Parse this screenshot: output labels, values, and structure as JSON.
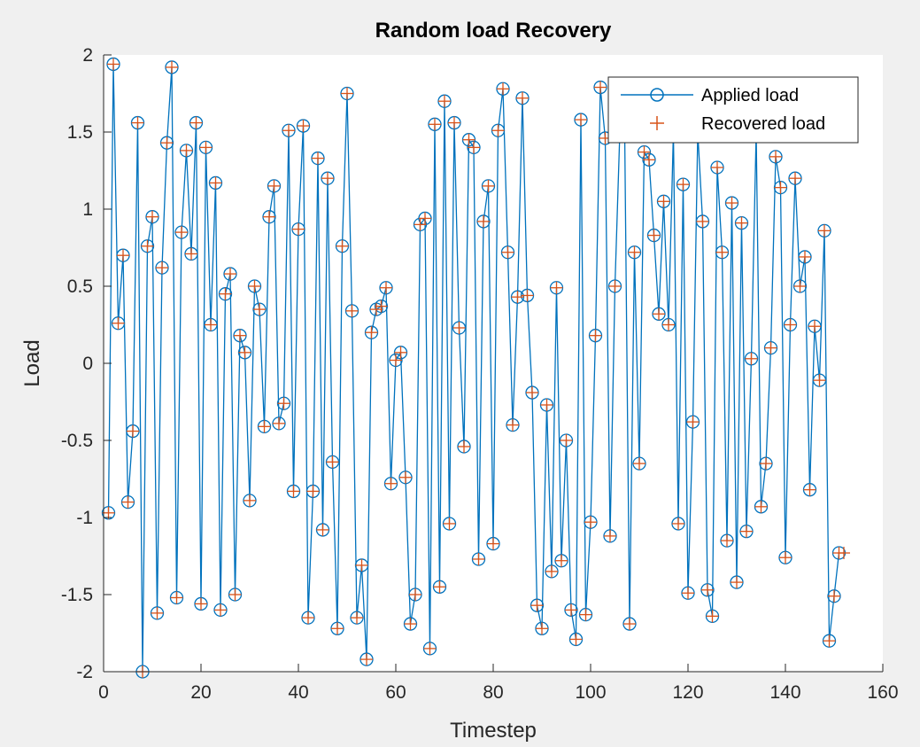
{
  "chart_data": {
    "type": "line",
    "title": "Random load Recovery",
    "xlabel": "Timestep",
    "ylabel": "Load",
    "xlim": [
      0,
      160
    ],
    "ylim": [
      -2,
      2
    ],
    "xticks": [
      "0",
      "20",
      "40",
      "60",
      "80",
      "100",
      "120",
      "140",
      "160"
    ],
    "yticks": [
      "2",
      "1.5",
      "1",
      "0.5",
      "0",
      "-0.5",
      "-1",
      "-1.5",
      "-2"
    ],
    "xtick_values": [
      0,
      20,
      40,
      60,
      80,
      100,
      120,
      140,
      160
    ],
    "ytick_values": [
      2,
      1.5,
      1,
      0.5,
      0,
      -0.5,
      -1,
      -1.5,
      -2
    ],
    "legend_position": "top-right",
    "grid": false,
    "series": [
      {
        "name": "Applied load",
        "style": "line-circle",
        "color": "#0072bd",
        "x": [
          1,
          2,
          3,
          4,
          5,
          6,
          7,
          8,
          9,
          10,
          11,
          12,
          13,
          14,
          15,
          16,
          17,
          18,
          19,
          20,
          21,
          22,
          23,
          24,
          25,
          26,
          27,
          28,
          29,
          30,
          31,
          32,
          33,
          34,
          35,
          36,
          37,
          38,
          39,
          40,
          41,
          42,
          43,
          44,
          45,
          46,
          47,
          48,
          49,
          50,
          51,
          52,
          53,
          54,
          55,
          56,
          57,
          58,
          59,
          60,
          61,
          62,
          63,
          64,
          65,
          66,
          67,
          68,
          69,
          70,
          71,
          72,
          73,
          74,
          75,
          76,
          77,
          78,
          79,
          80,
          81,
          82,
          83,
          84,
          85,
          86,
          87,
          88,
          89,
          90,
          91,
          92,
          93,
          94,
          95,
          96,
          97,
          98,
          99,
          100,
          101,
          102,
          103,
          104,
          105,
          106,
          107,
          108,
          109,
          110,
          111,
          112,
          113,
          114,
          115,
          116,
          117,
          118,
          119,
          120,
          121,
          122,
          123,
          124,
          125,
          126,
          127,
          128,
          129,
          130,
          131,
          132,
          133,
          134,
          135,
          136,
          137,
          138,
          139,
          140,
          141,
          142,
          143,
          144,
          145,
          146,
          147,
          148,
          149,
          150,
          151
        ],
        "values": [
          -0.97,
          1.94,
          0.26,
          0.7,
          -0.9,
          -0.44,
          1.56,
          -2.0,
          0.76,
          0.95,
          -1.62,
          0.62,
          1.43,
          1.92,
          -1.52,
          0.85,
          1.38,
          0.71,
          1.56,
          -1.56,
          1.4,
          0.25,
          1.17,
          -1.6,
          0.45,
          0.58,
          -1.5,
          0.18,
          0.07,
          -0.89,
          0.5,
          0.35,
          -0.41,
          0.95,
          1.15,
          -0.39,
          -0.26,
          1.51,
          -0.83,
          0.87,
          1.54,
          -1.65,
          -0.83,
          1.33,
          -1.08,
          1.2,
          -0.64,
          -1.72,
          0.76,
          1.75,
          0.34,
          -1.65,
          -1.31,
          -1.92,
          0.2,
          0.35,
          0.37,
          0.49,
          -0.78,
          0.02,
          0.07,
          -0.74,
          -1.69,
          -1.5,
          0.9,
          0.94,
          -1.85,
          1.55,
          -1.45,
          1.7,
          -1.04,
          1.56,
          0.23,
          -0.54,
          1.45,
          1.4,
          -1.27,
          0.92,
          1.15,
          -1.17,
          1.51,
          1.78,
          0.72,
          -0.4,
          0.43,
          1.72,
          0.44,
          -0.19,
          -1.57,
          -1.72,
          -0.27,
          -1.35,
          0.49,
          -1.28,
          -0.5,
          -1.6,
          -1.79,
          1.58,
          -1.63,
          -1.03,
          0.18,
          1.79,
          1.46,
          -1.12,
          0.5,
          1.5,
          1.5,
          -1.69,
          0.72,
          -0.65,
          1.37,
          1.32,
          0.83,
          0.32,
          1.05,
          0.25,
          1.5,
          -1.04,
          1.16,
          -1.49,
          -0.38,
          1.5,
          0.92,
          -1.47,
          -1.64,
          1.27,
          0.72,
          -1.15,
          1.04,
          -1.42,
          0.91,
          -1.09,
          0.03,
          1.5,
          -0.93,
          -0.65,
          0.1,
          1.34,
          1.14,
          -1.26,
          0.25,
          1.2,
          0.5,
          0.69,
          -0.82,
          0.24,
          -0.11,
          0.86,
          -1.8,
          -1.51,
          -1.23
        ]
      },
      {
        "name": "Recovered load",
        "style": "plus",
        "color": "#d95319",
        "x": [
          1,
          2,
          3,
          4,
          5,
          6,
          7,
          8,
          9,
          10,
          11,
          12,
          13,
          14,
          15,
          16,
          17,
          18,
          19,
          20,
          21,
          22,
          23,
          24,
          25,
          26,
          27,
          28,
          29,
          30,
          31,
          32,
          33,
          34,
          35,
          36,
          37,
          38,
          39,
          40,
          41,
          42,
          43,
          44,
          45,
          46,
          47,
          48,
          49,
          50,
          51,
          52,
          53,
          54,
          55,
          56,
          57,
          58,
          59,
          60,
          61,
          62,
          63,
          64,
          65,
          66,
          67,
          68,
          69,
          70,
          71,
          72,
          73,
          74,
          75,
          76,
          77,
          78,
          79,
          80,
          81,
          82,
          83,
          84,
          85,
          86,
          87,
          88,
          89,
          90,
          91,
          92,
          93,
          94,
          95,
          96,
          97,
          98,
          99,
          100,
          101,
          102,
          103,
          104,
          105,
          106,
          107,
          108,
          109,
          110,
          111,
          112,
          113,
          114,
          115,
          116,
          117,
          118,
          119,
          120,
          121,
          122,
          123,
          124,
          125,
          126,
          127,
          128,
          129,
          130,
          131,
          132,
          133,
          134,
          135,
          136,
          137,
          138,
          139,
          140,
          141,
          142,
          143,
          144,
          145,
          146,
          147,
          148,
          149,
          150,
          151,
          152
        ],
        "values": [
          -0.97,
          1.94,
          0.26,
          0.7,
          -0.9,
          -0.44,
          1.56,
          -2.0,
          0.76,
          0.95,
          -1.62,
          0.62,
          1.43,
          1.92,
          -1.52,
          0.85,
          1.38,
          0.71,
          1.56,
          -1.56,
          1.4,
          0.25,
          1.17,
          -1.6,
          0.45,
          0.58,
          -1.5,
          0.18,
          0.07,
          -0.89,
          0.5,
          0.35,
          -0.41,
          0.95,
          1.15,
          -0.39,
          -0.26,
          1.51,
          -0.83,
          0.87,
          1.54,
          -1.65,
          -0.83,
          1.33,
          -1.08,
          1.2,
          -0.64,
          -1.72,
          0.76,
          1.75,
          0.34,
          -1.65,
          -1.31,
          -1.92,
          0.2,
          0.35,
          0.37,
          0.49,
          -0.78,
          0.02,
          0.07,
          -0.74,
          -1.69,
          -1.5,
          0.9,
          0.94,
          -1.85,
          1.55,
          -1.45,
          1.7,
          -1.04,
          1.56,
          0.23,
          -0.54,
          1.45,
          1.4,
          -1.27,
          0.92,
          1.15,
          -1.17,
          1.51,
          1.78,
          0.72,
          -0.4,
          0.43,
          1.72,
          0.44,
          -0.19,
          -1.57,
          -1.72,
          -0.27,
          -1.35,
          0.49,
          -1.28,
          -0.5,
          -1.6,
          -1.79,
          1.58,
          -1.63,
          -1.03,
          0.18,
          1.79,
          1.46,
          -1.12,
          0.5,
          1.5,
          1.5,
          -1.69,
          0.72,
          -0.65,
          1.37,
          1.32,
          0.83,
          0.32,
          1.05,
          0.25,
          1.5,
          -1.04,
          1.16,
          -1.49,
          -0.38,
          1.5,
          0.92,
          -1.47,
          -1.64,
          1.27,
          0.72,
          -1.15,
          1.04,
          -1.42,
          0.91,
          -1.09,
          0.03,
          1.5,
          -0.93,
          -0.65,
          0.1,
          1.34,
          1.14,
          -1.26,
          0.25,
          1.2,
          0.5,
          0.69,
          -0.82,
          0.24,
          -0.11,
          0.86,
          -1.8,
          -1.51,
          -1.23,
          -1.23
        ]
      }
    ]
  }
}
